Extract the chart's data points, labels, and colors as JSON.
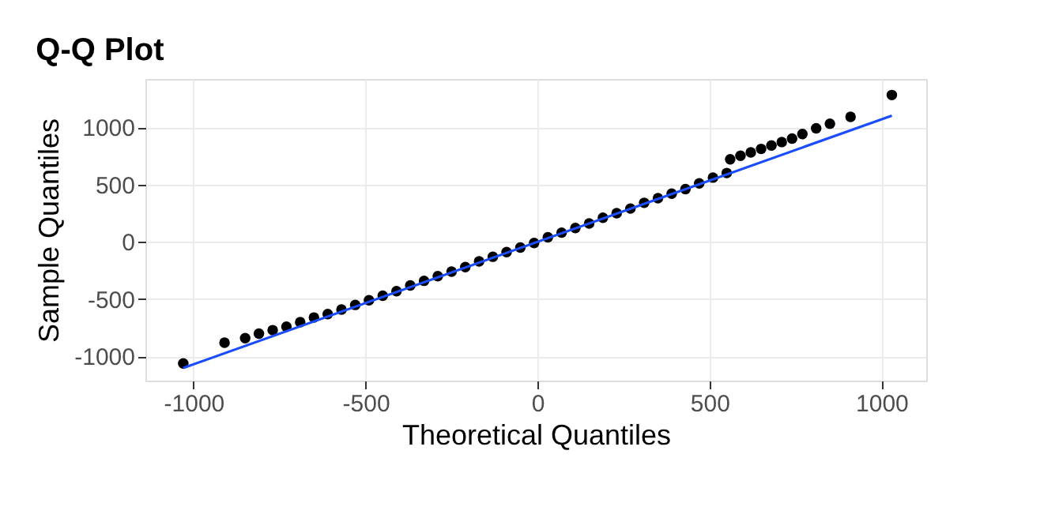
{
  "chart_data": {
    "type": "scatter",
    "title": "Q-Q Plot",
    "xlabel": "Theoretical Quantiles",
    "ylabel": "Sample Quantiles",
    "xlim": [
      -1140,
      1130
    ],
    "ylim": [
      -1210,
      1420
    ],
    "xticks": [
      -1000,
      -500,
      0,
      500,
      1000
    ],
    "yticks": [
      -1000,
      -500,
      0,
      500,
      1000
    ],
    "grid": true,
    "series": [
      {
        "color": "#000000",
        "marker": "circle",
        "x": [
          -1030,
          -910,
          -850,
          -810,
          -770,
          -730,
          -690,
          -650,
          -610,
          -570,
          -530,
          -490,
          -450,
          -410,
          -370,
          -330,
          -290,
          -250,
          -210,
          -170,
          -130,
          -90,
          -50,
          -10,
          30,
          70,
          110,
          150,
          190,
          230,
          270,
          310,
          350,
          390,
          430,
          470,
          510,
          550,
          560,
          590,
          620,
          650,
          680,
          710,
          740,
          770,
          810,
          850,
          910,
          1030
        ],
        "values": [
          -1060,
          -880,
          -840,
          -800,
          -770,
          -740,
          -700,
          -660,
          -630,
          -590,
          -550,
          -510,
          -470,
          -430,
          -380,
          -340,
          -300,
          -260,
          -220,
          -170,
          -130,
          -90,
          -50,
          -10,
          40,
          80,
          120,
          160,
          210,
          250,
          290,
          340,
          380,
          420,
          460,
          510,
          560,
          600,
          720,
          750,
          780,
          810,
          840,
          870,
          900,
          940,
          990,
          1030,
          1090,
          1280
        ]
      },
      {
        "type": "line",
        "color": "#1a4dff",
        "line_style": "solid",
        "x": [
          -1030,
          1030
        ],
        "values": [
          -1100,
          1100
        ]
      }
    ]
  }
}
